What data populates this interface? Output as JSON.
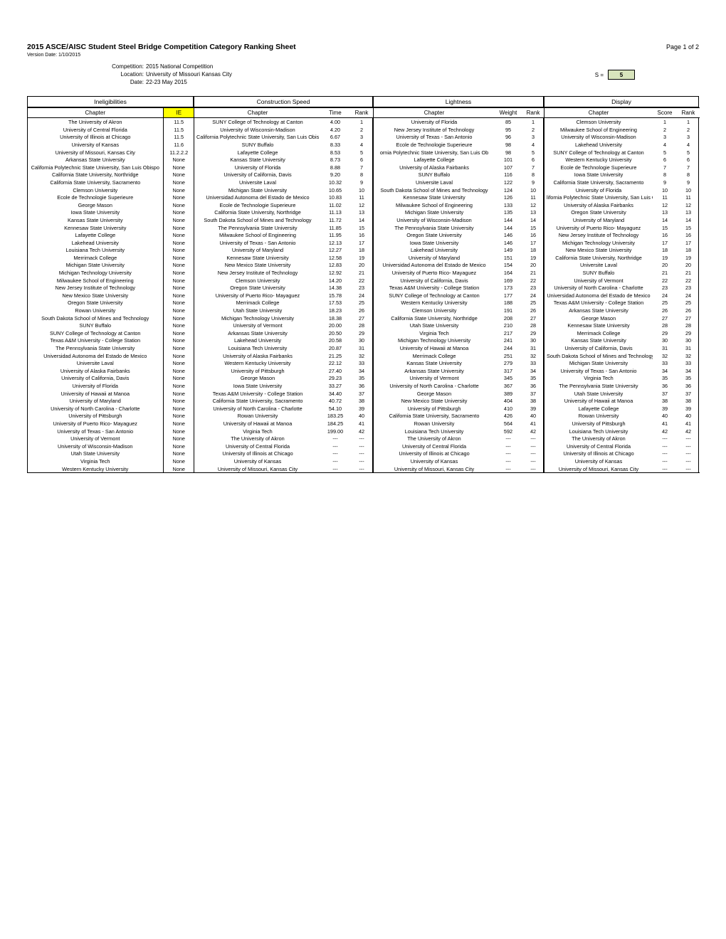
{
  "header": {
    "title": "2015 ASCE/AISC Student Steel Bridge Competition Category Ranking Sheet",
    "page": "Page 1 of 2",
    "version": "Version Date: 1/10/2015",
    "competition_lbl": "Competition:",
    "competition": "2015 National Competition",
    "location_lbl": "Location:",
    "location": "University of Missouri Kansas City",
    "date_lbl": "Date:",
    "date": "22-23 May 2015",
    "s_label": "S =",
    "s_value": "5"
  },
  "sections": {
    "inel": {
      "title": "Ineligibilities",
      "cols": [
        "Chapter",
        "IE"
      ]
    },
    "speed": {
      "title": "Construction Speed",
      "cols": [
        "Chapter",
        "Time",
        "Rank"
      ]
    },
    "light": {
      "title": "Lightness",
      "cols": [
        "Chapter",
        "Weight",
        "Rank"
      ]
    },
    "disp": {
      "title": "Display",
      "cols": [
        "Chapter",
        "Score",
        "Rank"
      ]
    }
  },
  "inel_rows": [
    [
      "The University of Akron",
      "11.5"
    ],
    [
      "University of Central Florida",
      "11.5"
    ],
    [
      "University of Illinois at Chicago",
      "11.5"
    ],
    [
      "University of Kansas",
      "11.6"
    ],
    [
      "University of Missouri, Kansas City",
      "11.2.2.2"
    ],
    [
      "Arkansas State University",
      "None"
    ],
    [
      "California Polytechnic State University, San Luis Obispo",
      "None"
    ],
    [
      "California State University, Northridge",
      "None"
    ],
    [
      "California State University, Sacramento",
      "None"
    ],
    [
      "Clemson University",
      "None"
    ],
    [
      "Ecole de Technologie Superieure",
      "None"
    ],
    [
      "George Mason",
      "None"
    ],
    [
      "Iowa State University",
      "None"
    ],
    [
      "Kansas State University",
      "None"
    ],
    [
      "Kennesaw State University",
      "None"
    ],
    [
      "Lafayette College",
      "None"
    ],
    [
      "Lakehead University",
      "None"
    ],
    [
      "Louisiana Tech University",
      "None"
    ],
    [
      "Merrimack College",
      "None"
    ],
    [
      "Michigan State University",
      "None"
    ],
    [
      "Michigan Technology University",
      "None"
    ],
    [
      "Milwaukee School of Engineering",
      "None"
    ],
    [
      "New Jersey Institute of Technology",
      "None"
    ],
    [
      "New Mexico State University",
      "None"
    ],
    [
      "Oregon State University",
      "None"
    ],
    [
      "Rowan University",
      "None"
    ],
    [
      "South Dakota School of Mines and Technology",
      "None"
    ],
    [
      "SUNY Buffalo",
      "None"
    ],
    [
      "SUNY College of Technology at Canton",
      "None"
    ],
    [
      "Texas A&M University - College Station",
      "None"
    ],
    [
      "The Pennsylvania State University",
      "None"
    ],
    [
      "Universidad Autonoma del Estado de Mexico",
      "None"
    ],
    [
      "Universite Laval",
      "None"
    ],
    [
      "University of Alaska Fairbanks",
      "None"
    ],
    [
      "University of California, Davis",
      "None"
    ],
    [
      "University of Florida",
      "None"
    ],
    [
      "University of Hawaii at Manoa",
      "None"
    ],
    [
      "University of Maryland",
      "None"
    ],
    [
      "University of North Carolina - Charlotte",
      "None"
    ],
    [
      "University of Pittsburgh",
      "None"
    ],
    [
      "University of Puerto Rico- Mayaguez",
      "None"
    ],
    [
      "University of Texas - San Antonio",
      "None"
    ],
    [
      "University of Vermont",
      "None"
    ],
    [
      "University of Wisconsin-Madison",
      "None"
    ],
    [
      "Utah State University",
      "None"
    ],
    [
      "Virginia Tech",
      "None"
    ],
    [
      "Western Kentucky University",
      "None"
    ]
  ],
  "speed_rows": [
    [
      "SUNY College of Technology at Canton",
      "4.00",
      "1"
    ],
    [
      "University of Wisconsin-Madison",
      "4.20",
      "2"
    ],
    [
      "California Polytechnic State University, San Luis Obis",
      "6.67",
      "3"
    ],
    [
      "SUNY Buffalo",
      "8.33",
      "4"
    ],
    [
      "Lafayette College",
      "8.53",
      "5"
    ],
    [
      "Kansas State University",
      "8.73",
      "6"
    ],
    [
      "University of Florida",
      "8.88",
      "7"
    ],
    [
      "University of California, Davis",
      "9.20",
      "8"
    ],
    [
      "Universite Laval",
      "10.32",
      "9"
    ],
    [
      "Michigan State University",
      "10.65",
      "10"
    ],
    [
      "Universidad Autonoma del Estado de Mexico",
      "10.83",
      "11"
    ],
    [
      "Ecole de Technologie Superieure",
      "11.02",
      "12"
    ],
    [
      "California State University, Northridge",
      "11.13",
      "13"
    ],
    [
      "South Dakota School of Mines and Technology",
      "11.72",
      "14"
    ],
    [
      "The Pennsylvania State University",
      "11.85",
      "15"
    ],
    [
      "Milwaukee School of Engineering",
      "11.95",
      "16"
    ],
    [
      "University of Texas - San Antonio",
      "12.13",
      "17"
    ],
    [
      "University of Maryland",
      "12.27",
      "18"
    ],
    [
      "Kennesaw State University",
      "12.58",
      "19"
    ],
    [
      "New Mexico State University",
      "12.83",
      "20"
    ],
    [
      "New Jersey Institute of Technology",
      "12.92",
      "21"
    ],
    [
      "Clemson University",
      "14.20",
      "22"
    ],
    [
      "Oregon State University",
      "14.38",
      "23"
    ],
    [
      "University of Puerto Rico- Mayaguez",
      "15.78",
      "24"
    ],
    [
      "Merrimack College",
      "17.53",
      "25"
    ],
    [
      "Utah State University",
      "18.23",
      "26"
    ],
    [
      "Michigan Technology University",
      "18.38",
      "27"
    ],
    [
      "University of Vermont",
      "20.00",
      "28"
    ],
    [
      "Arkansas State University",
      "20.50",
      "29"
    ],
    [
      "Lakehead University",
      "20.58",
      "30"
    ],
    [
      "Louisiana Tech University",
      "20.87",
      "31"
    ],
    [
      "University of Alaska Fairbanks",
      "21.25",
      "32"
    ],
    [
      "Western Kentucky University",
      "22.12",
      "33"
    ],
    [
      "University of Pittsburgh",
      "27.40",
      "34"
    ],
    [
      "George Mason",
      "29.23",
      "35"
    ],
    [
      "Iowa State University",
      "33.27",
      "36"
    ],
    [
      "Texas A&M University - College Station",
      "34.40",
      "37"
    ],
    [
      "California State University, Sacramento",
      "40.72",
      "38"
    ],
    [
      "University of North Carolina - Charlotte",
      "54.10",
      "39"
    ],
    [
      "Rowan University",
      "183.25",
      "40"
    ],
    [
      "University of Hawaii at Manoa",
      "184.25",
      "41"
    ],
    [
      "Virginia Tech",
      "199.00",
      "42"
    ],
    [
      "The University of Akron",
      "---",
      "---"
    ],
    [
      "University of Central Florida",
      "---",
      "---"
    ],
    [
      "University of Illinois at Chicago",
      "---",
      "---"
    ],
    [
      "University of Kansas",
      "---",
      "---"
    ],
    [
      "University of Missouri, Kansas City",
      "---",
      "---"
    ]
  ],
  "light_rows": [
    [
      "University of Florida",
      "85",
      "1"
    ],
    [
      "New Jersey Institute of Technology",
      "95",
      "2"
    ],
    [
      "University of Texas - San Antonio",
      "96",
      "3"
    ],
    [
      "Ecole de Technologie Superieure",
      "98",
      "4"
    ],
    [
      "ornia Polytechnic State University, San Luis Ob",
      "98",
      "5"
    ],
    [
      "Lafayette College",
      "101",
      "6"
    ],
    [
      "University of Alaska Fairbanks",
      "107",
      "7"
    ],
    [
      "SUNY Buffalo",
      "116",
      "8"
    ],
    [
      "Universite Laval",
      "122",
      "9"
    ],
    [
      "South Dakota School of Mines and Technology",
      "124",
      "10"
    ],
    [
      "Kennesaw State University",
      "126",
      "11"
    ],
    [
      "Milwaukee School of Engineering",
      "133",
      "12"
    ],
    [
      "Michigan State University",
      "135",
      "13"
    ],
    [
      "University of Wisconsin-Madison",
      "144",
      "14"
    ],
    [
      "The Pennsylvania State University",
      "144",
      "15"
    ],
    [
      "Oregon State University",
      "146",
      "16"
    ],
    [
      "Iowa State University",
      "146",
      "17"
    ],
    [
      "Lakehead University",
      "149",
      "18"
    ],
    [
      "University of Maryland",
      "151",
      "19"
    ],
    [
      "Universidad Autonoma del Estado de Mexico",
      "154",
      "20"
    ],
    [
      "University of Puerto Rico- Mayaguez",
      "164",
      "21"
    ],
    [
      "University of California, Davis",
      "169",
      "22"
    ],
    [
      "Texas A&M University - College Station",
      "173",
      "23"
    ],
    [
      "SUNY College of Technology at Canton",
      "177",
      "24"
    ],
    [
      "Western Kentucky University",
      "188",
      "25"
    ],
    [
      "Clemson University",
      "191",
      "26"
    ],
    [
      "California State University, Northridge",
      "208",
      "27"
    ],
    [
      "Utah State University",
      "210",
      "28"
    ],
    [
      "Virginia Tech",
      "217",
      "29"
    ],
    [
      "Michigan Technology University",
      "241",
      "30"
    ],
    [
      "University of Hawaii at Manoa",
      "244",
      "31"
    ],
    [
      "Merrimack College",
      "251",
      "32"
    ],
    [
      "Kansas State University",
      "279",
      "33"
    ],
    [
      "Arkansas State University",
      "317",
      "34"
    ],
    [
      "University of Vermont",
      "345",
      "35"
    ],
    [
      "University of North Carolina - Charlotte",
      "367",
      "36"
    ],
    [
      "George Mason",
      "389",
      "37"
    ],
    [
      "New Mexico State University",
      "404",
      "38"
    ],
    [
      "University of Pittsburgh",
      "410",
      "39"
    ],
    [
      "California State University, Sacramento",
      "426",
      "40"
    ],
    [
      "Rowan University",
      "564",
      "41"
    ],
    [
      "Louisiana Tech University",
      "592",
      "42"
    ],
    [
      "The University of Akron",
      "---",
      "---"
    ],
    [
      "University of Central Florida",
      "---",
      "---"
    ],
    [
      "University of Illinois at Chicago",
      "---",
      "---"
    ],
    [
      "University of Kansas",
      "---",
      "---"
    ],
    [
      "University of Missouri, Kansas City",
      "---",
      "---"
    ]
  ],
  "disp_rows": [
    [
      "Clemson University",
      "1",
      "1"
    ],
    [
      "Milwaukee School of Engineering",
      "2",
      "2"
    ],
    [
      "University of Wisconsin-Madison",
      "3",
      "3"
    ],
    [
      "Lakehead University",
      "4",
      "4"
    ],
    [
      "SUNY College of Technology at Canton",
      "5",
      "5"
    ],
    [
      "Western Kentucky University",
      "6",
      "6"
    ],
    [
      "Ecole de Technologie Superieure",
      "7",
      "7"
    ],
    [
      "Iowa State University",
      "8",
      "8"
    ],
    [
      "California State University, Sacramento",
      "9",
      "9"
    ],
    [
      "University of Florida",
      "10",
      "10"
    ],
    [
      "lifornia Polytechnic State University, San Luis Obis",
      "11",
      "11"
    ],
    [
      "University of Alaska Fairbanks",
      "12",
      "12"
    ],
    [
      "Oregon State University",
      "13",
      "13"
    ],
    [
      "University of Maryland",
      "14",
      "14"
    ],
    [
      "University of Puerto Rico- Mayaguez",
      "15",
      "15"
    ],
    [
      "New Jersey Institute of Technology",
      "16",
      "16"
    ],
    [
      "Michigan Technology University",
      "17",
      "17"
    ],
    [
      "New Mexico State University",
      "18",
      "18"
    ],
    [
      "California State University, Northridge",
      "19",
      "19"
    ],
    [
      "Universite Laval",
      "20",
      "20"
    ],
    [
      "SUNY Buffalo",
      "21",
      "21"
    ],
    [
      "University of Vermont",
      "22",
      "22"
    ],
    [
      "University of North Carolina - Charlotte",
      "23",
      "23"
    ],
    [
      "Universidad Autonoma del Estado de Mexico",
      "24",
      "24"
    ],
    [
      "Texas A&M University - College Station",
      "25",
      "25"
    ],
    [
      "Arkansas State University",
      "26",
      "26"
    ],
    [
      "George Mason",
      "27",
      "27"
    ],
    [
      "Kennesaw State University",
      "28",
      "28"
    ],
    [
      "Merrimack College",
      "29",
      "29"
    ],
    [
      "Kansas State University",
      "30",
      "30"
    ],
    [
      "University of California, Davis",
      "31",
      "31"
    ],
    [
      "South Dakota School of Mines and Technology",
      "32",
      "32"
    ],
    [
      "Michigan State University",
      "33",
      "33"
    ],
    [
      "University of Texas - San Antonio",
      "34",
      "34"
    ],
    [
      "Virginia Tech",
      "35",
      "35"
    ],
    [
      "The Pennsylvania State University",
      "36",
      "36"
    ],
    [
      "Utah State University",
      "37",
      "37"
    ],
    [
      "University of Hawaii at Manoa",
      "38",
      "38"
    ],
    [
      "Lafayette College",
      "39",
      "39"
    ],
    [
      "Rowan University",
      "40",
      "40"
    ],
    [
      "University of Pittsburgh",
      "41",
      "41"
    ],
    [
      "Louisiana Tech University",
      "42",
      "42"
    ],
    [
      "The University of Akron",
      "---",
      "---"
    ],
    [
      "University of Central Florida",
      "---",
      "---"
    ],
    [
      "University of Illinois at Chicago",
      "---",
      "---"
    ],
    [
      "University of Kansas",
      "---",
      "---"
    ],
    [
      "University of Missouri, Kansas City",
      "---",
      "---"
    ]
  ]
}
